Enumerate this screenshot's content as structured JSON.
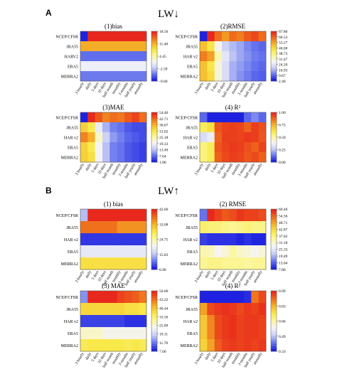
{
  "figure": {
    "label_a": "A",
    "title_a": "LW↓",
    "label_b": "B",
    "title_b": "LW↑"
  },
  "palette": [
    "#1e22e0",
    "#6a78ee",
    "#c7cdf5",
    "#f4f4f8",
    "#fbf7a0",
    "#f9e94a",
    "#f5b82a",
    "#ef6f1c",
    "#e8281c"
  ],
  "chart_data": [
    {
      "type": "heatmap",
      "id": "A1",
      "title": "(1)bias",
      "rows": [
        "NCEP/CFSR",
        "JRA55",
        "HARV2",
        "ERA5",
        "MERRA2"
      ],
      "cols": [
        "3 hourly",
        "daily",
        "5 days",
        "10 days",
        "half month",
        "monthly",
        "3 months",
        "half yearly",
        "annually"
      ],
      "colorbar_ticks": [
        "18.50",
        "11.48",
        "4.45",
        "-2.58",
        "-9.60"
      ],
      "vmin": -9.6,
      "vmax": 18.5,
      "values": [
        [
          -9.6,
          18.5,
          18.5,
          18.5,
          18.5,
          18.5,
          18.5,
          18.5,
          18.5
        ],
        [
          12,
          12,
          12,
          12,
          12,
          12,
          12,
          12,
          12
        ],
        [
          -6.5,
          -6.5,
          -6.5,
          -6.5,
          -6.5,
          -6.5,
          -6.5,
          -6.5,
          -6.5
        ],
        [
          0.5,
          0.5,
          0.5,
          0.5,
          0.5,
          0.5,
          0.5,
          0.5,
          0.5
        ],
        [
          -6,
          -6,
          -6,
          -6,
          -6,
          -6,
          -6,
          -6,
          -6
        ]
      ]
    },
    {
      "type": "heatmap",
      "id": "A2",
      "title": "(2)RMSE",
      "rows": [
        "NCEP/CFSR",
        "JRA55",
        "HAR v2",
        "ERA5",
        "MERRA2"
      ],
      "cols": [
        "3 hourly",
        "daily",
        "5 days",
        "10 days",
        "half month",
        "monthly",
        "3 months",
        "half yearly",
        "annually"
      ],
      "colorbar_ticks": [
        "67.80",
        "60.53",
        "53.27",
        "46.00",
        "38.73",
        "31.47",
        "24.20",
        "16.93",
        "9.67",
        "2.40"
      ],
      "vmin": 2.4,
      "vmax": 67.8,
      "values": [
        [
          2.4,
          67.8,
          60,
          55,
          60,
          58,
          62,
          64,
          60
        ],
        [
          50,
          44,
          28,
          20,
          17,
          15,
          12,
          10,
          9
        ],
        [
          58,
          54,
          34,
          24,
          18,
          15,
          13,
          11,
          10
        ],
        [
          50,
          44,
          30,
          22,
          16,
          14,
          12,
          10,
          9
        ],
        [
          50,
          46,
          30,
          22,
          16,
          13,
          11,
          9,
          8
        ]
      ]
    },
    {
      "type": "heatmap",
      "id": "A3",
      "title": "(3)MAE",
      "rows": [
        "NCEP/CFSR",
        "JRA55",
        "HAR v2",
        "ERA5",
        "MERRA2"
      ],
      "cols": [
        "3 hourly",
        "daily",
        "5 days",
        "10 days",
        "half month",
        "monthly",
        "3 months",
        "half yearly",
        "annually"
      ],
      "colorbar_ticks": [
        "54.40",
        "42.71",
        "36.67",
        "31.02",
        "25.18",
        "19.33",
        "13.49",
        "7.64",
        "1.80"
      ],
      "vmin": 1.8,
      "vmax": 54.4,
      "values": [
        [
          1.8,
          54.4,
          50,
          46,
          48,
          47,
          50,
          52,
          48
        ],
        [
          38,
          34,
          20,
          13,
          9,
          8,
          6,
          5,
          5
        ],
        [
          46,
          42,
          25,
          16,
          11,
          9,
          7,
          6,
          5
        ],
        [
          38,
          34,
          22,
          14,
          9,
          8,
          6,
          5,
          4
        ],
        [
          38,
          36,
          22,
          14,
          9,
          8,
          6,
          5,
          4
        ]
      ]
    },
    {
      "type": "heatmap",
      "id": "A4",
      "title": "(4) R²",
      "rows": [
        "NCEP/CFSR",
        "JRA55",
        "HAR v2",
        "ERA5",
        "MERRA2"
      ],
      "cols": [
        "3 hourly",
        "daily",
        "5 days",
        "10 days",
        "half month",
        "monthly",
        "3 months",
        "half yearly",
        "annually"
      ],
      "colorbar_ticks": [
        "1.00",
        "0.75",
        "0.50",
        "0.25",
        "0.00"
      ],
      "vmin": 0.0,
      "vmax": 1.0,
      "values": [
        [
          0.1,
          0.0,
          0.0,
          0.0,
          0.0,
          0.0,
          0.1,
          0.15,
          0.1
        ],
        [
          0.6,
          0.65,
          0.92,
          0.95,
          0.96,
          0.95,
          0.9,
          0.96,
          0.93
        ],
        [
          0.3,
          0.35,
          0.9,
          0.96,
          0.96,
          0.95,
          0.97,
          0.96,
          0.92
        ],
        [
          0.55,
          0.6,
          0.92,
          0.95,
          0.97,
          0.96,
          0.93,
          0.9,
          0.95
        ],
        [
          0.55,
          0.6,
          0.9,
          0.94,
          0.96,
          0.95,
          0.92,
          0.94,
          0.9
        ]
      ]
    },
    {
      "type": "heatmap",
      "id": "B1",
      "title": "(1) bias",
      "rows": [
        "NCEP/CFSR",
        "JRA55",
        "HAR v2",
        "ERA5",
        "MERRA2"
      ],
      "cols": [
        "3 hourly",
        "daily",
        "5 days",
        "10 days",
        "half month",
        "monthly",
        "3 months",
        "half yearly",
        "annually"
      ],
      "colorbar_ticks": [
        "42.60",
        "33.08",
        "24.75",
        "15.83",
        "6.90"
      ],
      "vmin": 6.9,
      "vmax": 42.6,
      "values": [
        [
          15,
          42.6,
          42.6,
          42.6,
          42.6,
          42.6,
          42.6,
          42.6,
          42.6
        ],
        [
          38,
          38,
          38,
          38,
          38,
          36,
          36,
          36,
          36
        ],
        [
          8,
          8,
          8,
          8,
          8,
          8,
          8,
          8,
          8
        ],
        [
          19,
          19,
          19,
          19,
          19,
          19,
          19,
          19,
          19
        ],
        [
          30,
          30,
          30,
          30,
          30,
          30,
          30,
          30,
          30
        ]
      ]
    },
    {
      "type": "heatmap",
      "id": "B2",
      "title": "(2) RMSE",
      "rows": [
        "NCEP/CFSR",
        "JRA55",
        "HAR v2",
        "ERA5",
        "MERRA2"
      ],
      "cols": [
        "3 hourly",
        "daily",
        "5 days",
        "10 days",
        "half month",
        "monthly",
        "3 months",
        "half yearly",
        "annually"
      ],
      "colorbar_ticks": [
        "60.40",
        "54.56",
        "48.71",
        "42.87",
        "37.02",
        "31.18",
        "25.33",
        "19.49",
        "13.64",
        "7.80"
      ],
      "vmin": 7.8,
      "vmax": 60.4,
      "values": [
        [
          14,
          60.4,
          58,
          56,
          57,
          59,
          58,
          58,
          57
        ],
        [
          38,
          37,
          37,
          36,
          35,
          36,
          37,
          36,
          36
        ],
        [
          10,
          9,
          9,
          9,
          9,
          8,
          9,
          8,
          8
        ],
        [
          33,
          32,
          28,
          30,
          34,
          31,
          30,
          28,
          30
        ],
        [
          35,
          36,
          36,
          35,
          35,
          35,
          34,
          35,
          35
        ]
      ]
    },
    {
      "type": "heatmap",
      "id": "B3",
      "title": "(3) MAE",
      "rows": [
        "NCEP/CFSR",
        "JRA55",
        "HAR v2",
        "ERA5",
        "MERRA2"
      ],
      "cols": [
        "3 hourly",
        "daily",
        "5 days",
        "10 days",
        "half month",
        "monthly",
        "3 months",
        "half yearly",
        "annually"
      ],
      "colorbar_ticks": [
        "50.00",
        "43.22",
        "40.44",
        "33.56",
        "25.89",
        "19.11",
        "11.78",
        "7.00"
      ],
      "vmin": 7.0,
      "vmax": 50.0,
      "values": [
        [
          14,
          50,
          50,
          50,
          50,
          48,
          47,
          46,
          44
        ],
        [
          36,
          36,
          36,
          36,
          36,
          36,
          35,
          35,
          34
        ],
        [
          9,
          9,
          9,
          9,
          9,
          9,
          8,
          8,
          8
        ],
        [
          26,
          26,
          26,
          24,
          24,
          24,
          24,
          24,
          24
        ],
        [
          33,
          34,
          34,
          34,
          34,
          34,
          33,
          34,
          33
        ]
      ]
    },
    {
      "type": "heatmap",
      "id": "B4",
      "title": "(4) R²",
      "rows": [
        "NCEP/CFSR",
        "JRA55",
        "HAR v2",
        "ERA5",
        "MERRA2"
      ],
      "cols": [
        "3 hourly",
        "daily",
        "5 days",
        "10 days",
        "half month",
        "monthly",
        "3 months",
        "half yearly",
        "annually"
      ],
      "colorbar_ticks": [
        "0.99",
        "0.83",
        "0.66",
        "0.49",
        "0.33"
      ],
      "vmin": 0.33,
      "vmax": 0.99,
      "values": [
        [
          0.33,
          0.33,
          0.33,
          0.33,
          0.33,
          0.33,
          0.34,
          0.9,
          0.95
        ],
        [
          0.85,
          0.95,
          0.97,
          0.98,
          0.97,
          0.95,
          0.97,
          0.96,
          0.98
        ],
        [
          0.8,
          0.88,
          0.95,
          0.97,
          0.98,
          0.96,
          0.97,
          0.97,
          0.96
        ],
        [
          0.8,
          0.88,
          0.95,
          0.97,
          0.98,
          0.96,
          0.97,
          0.97,
          0.96
        ],
        [
          0.78,
          0.85,
          0.93,
          0.96,
          0.97,
          0.96,
          0.97,
          0.96,
          0.97
        ]
      ]
    }
  ]
}
